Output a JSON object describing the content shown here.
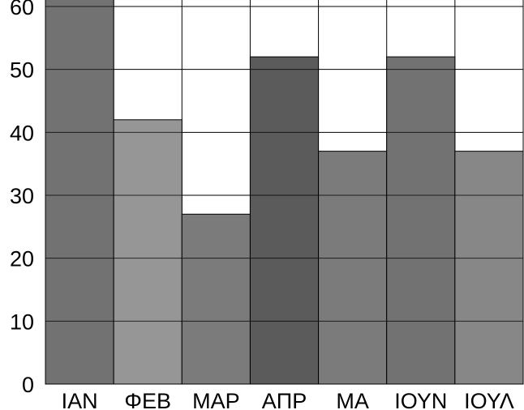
{
  "chart_data": {
    "type": "bar",
    "categories": [
      "ΙΑΝ",
      "ΦΕΒ",
      "ΜΑΡ",
      "ΑΠΡ",
      "ΜΑ",
      "ΙΟΥΝ",
      "ΙΟΥΛ"
    ],
    "values": [
      62,
      42,
      27,
      52,
      37,
      52,
      37
    ],
    "colors": [
      "#727272",
      "#969696",
      "#7b7b7b",
      "#5b5b5b",
      "#7b7b7b",
      "#727272",
      "#878787"
    ],
    "y_ticks": [
      0,
      10,
      20,
      30,
      40,
      50,
      60
    ],
    "ylim": [
      0,
      62
    ],
    "title": "",
    "xlabel": "",
    "ylabel": "",
    "grid": true,
    "legend": "none"
  }
}
